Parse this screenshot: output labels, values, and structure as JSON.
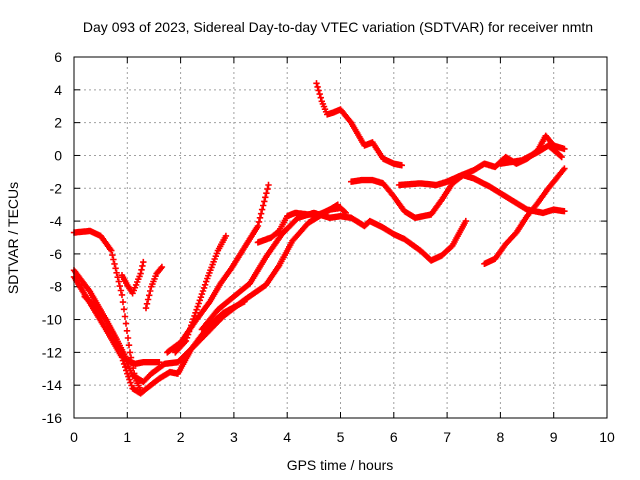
{
  "chart_data": {
    "type": "scatter",
    "title": "Day 093 of 2023, Sidereal Day-to-day VTEC variation (SDTVAR) for receiver nmtn",
    "xlabel": "GPS time / hours",
    "ylabel": "SDTVAR / TECUs",
    "xlim": [
      0,
      10
    ],
    "ylim": [
      -16,
      6
    ],
    "xticks": [
      "0",
      "1",
      "2",
      "3",
      "4",
      "5",
      "6",
      "7",
      "8",
      "9",
      "10"
    ],
    "yticks": [
      "-16",
      "-14",
      "-12",
      "-10",
      "-8",
      "-6",
      "-4",
      "-2",
      "0",
      "2",
      "4",
      "6"
    ],
    "grid": true,
    "marker": "plus",
    "color": "#ff0000",
    "series": [
      {
        "x": [
          0.0,
          0.3,
          0.5,
          0.7,
          0.9,
          1.05,
          1.15,
          1.25
        ],
        "y": [
          -4.7,
          -4.6,
          -4.9,
          -5.8,
          -8.5,
          -12.0,
          -13.6,
          -14.3
        ]
      },
      {
        "x": [
          0.0,
          0.3,
          0.6,
          0.9,
          1.1,
          1.3,
          1.45,
          1.7,
          1.95,
          2.2,
          2.5,
          2.8,
          3.2,
          3.6,
          3.85,
          4.1,
          4.4,
          4.7,
          4.95
        ],
        "y": [
          -7.0,
          -8.3,
          -10.0,
          -12.0,
          -13.4,
          -13.8,
          -13.3,
          -12.7,
          -12.6,
          -11.8,
          -10.8,
          -9.8,
          -8.8,
          -7.9,
          -6.7,
          -5.2,
          -4.1,
          -3.5,
          -3.0
        ]
      },
      {
        "x": [
          0.0,
          0.3,
          0.6,
          0.9,
          1.0,
          1.1,
          1.25,
          1.4,
          1.6,
          1.8,
          1.95,
          2.2,
          2.5,
          2.8,
          3.2
        ],
        "y": [
          -7.4,
          -9.0,
          -10.6,
          -12.3,
          -13.3,
          -14.2,
          -14.5,
          -14.1,
          -13.6,
          -13.2,
          -13.3,
          -11.8,
          -10.5,
          -9.6,
          -8.9
        ]
      },
      {
        "x": [
          0.2,
          0.4,
          0.6,
          0.8,
          1.0,
          1.15,
          1.3,
          1.45,
          1.6
        ],
        "y": [
          -8.6,
          -9.2,
          -10.0,
          -11.2,
          -12.5,
          -12.7,
          -12.6,
          -12.6,
          -12.6
        ]
      },
      {
        "x": [
          0.9,
          1.0,
          1.1,
          1.25,
          1.3
        ],
        "y": [
          -7.3,
          -7.9,
          -8.4,
          -7.2,
          -6.5
        ]
      },
      {
        "x": [
          1.35,
          1.45,
          1.55,
          1.65
        ],
        "y": [
          -9.3,
          -8.0,
          -7.2,
          -6.8
        ]
      },
      {
        "x": [
          1.75,
          2.0,
          2.3,
          2.55,
          2.75,
          2.95,
          3.2,
          3.45,
          3.65
        ],
        "y": [
          -12.0,
          -11.4,
          -10.0,
          -8.9,
          -7.8,
          -6.9,
          -5.6,
          -4.3,
          -1.8
        ]
      },
      {
        "x": [
          1.9,
          2.1,
          2.3,
          2.5,
          2.7,
          2.85
        ],
        "y": [
          -12.0,
          -11.3,
          -9.4,
          -7.5,
          -5.8,
          -4.9
        ]
      },
      {
        "x": [
          2.4,
          2.7,
          3.0,
          3.3,
          3.6,
          3.9,
          4.2,
          4.5,
          4.8,
          5.0,
          5.2,
          5.35,
          5.45,
          5.55,
          5.8,
          6.0,
          6.2,
          6.5,
          6.7,
          6.9,
          7.1,
          7.35
        ],
        "y": [
          -10.6,
          -9.4,
          -8.6,
          -7.8,
          -6.2,
          -4.8,
          -3.8,
          -3.5,
          -3.8,
          -3.7,
          -3.8,
          -4.1,
          -4.3,
          -4.0,
          -4.4,
          -4.8,
          -5.1,
          -5.8,
          -6.4,
          -6.1,
          -5.5,
          -4.0
        ]
      },
      {
        "x": [
          3.45,
          3.7,
          3.85,
          4.0,
          4.15,
          4.4,
          4.6,
          4.8,
          5.0,
          5.1
        ],
        "y": [
          -5.3,
          -5.0,
          -4.6,
          -3.7,
          -3.5,
          -3.6,
          -3.6,
          -3.3,
          -3.2,
          -3.5
        ]
      },
      {
        "x": [
          4.55,
          4.65,
          4.75,
          4.85,
          5.0,
          5.2,
          5.45,
          5.6,
          5.8,
          6.0,
          6.15
        ],
        "y": [
          4.4,
          3.3,
          2.5,
          2.6,
          2.8,
          2.0,
          0.6,
          0.8,
          -0.2,
          -0.5,
          -0.6
        ]
      },
      {
        "x": [
          5.2,
          5.4,
          5.6,
          5.8,
          6.0,
          6.2,
          6.4,
          6.7,
          6.9,
          7.1,
          7.3,
          7.5,
          7.8,
          8.1,
          8.5,
          8.8,
          9.0,
          9.2
        ],
        "y": [
          -1.6,
          -1.5,
          -1.5,
          -1.7,
          -2.5,
          -3.4,
          -3.8,
          -3.6,
          -2.7,
          -1.7,
          -1.2,
          -1.4,
          -1.9,
          -2.5,
          -3.3,
          -3.5,
          -3.3,
          -3.4
        ]
      },
      {
        "x": [
          6.1,
          6.5,
          6.8,
          7.0,
          7.2,
          7.5,
          7.7,
          7.9,
          8.1,
          8.3,
          8.5,
          8.7,
          8.85,
          9.0,
          9.2
        ],
        "y": [
          -1.8,
          -1.7,
          -1.8,
          -1.6,
          -1.3,
          -0.9,
          -0.5,
          -0.7,
          -0.1,
          -0.5,
          -0.2,
          0.3,
          1.2,
          0.6,
          0.4
        ]
      },
      {
        "x": [
          7.7,
          7.9,
          8.1,
          8.3,
          8.5,
          8.7,
          8.9,
          9.05,
          9.2
        ],
        "y": [
          -6.6,
          -6.3,
          -5.4,
          -4.7,
          -3.7,
          -2.9,
          -2.0,
          -1.4,
          -0.8
        ]
      },
      {
        "x": [
          8.0,
          8.4,
          8.7,
          8.9,
          9.05,
          9.15
        ],
        "y": [
          -0.5,
          -0.3,
          0.2,
          0.6,
          0.2,
          -0.1
        ]
      }
    ]
  }
}
